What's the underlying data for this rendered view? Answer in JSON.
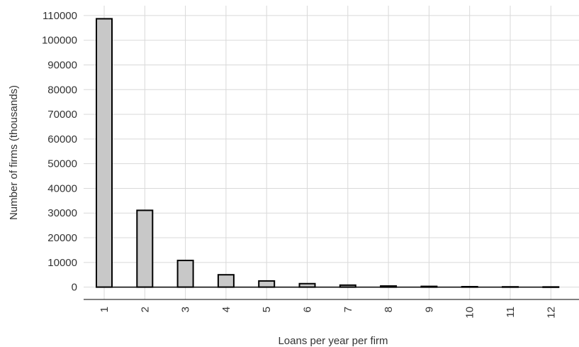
{
  "chart_data": {
    "type": "bar",
    "title": "",
    "xlabel": "Loans per year per firm",
    "ylabel": "Number of firms (thousands)",
    "categories": [
      "1",
      "2",
      "3",
      "4",
      "5",
      "6",
      "7",
      "8",
      "9",
      "10",
      "11",
      "12"
    ],
    "values": [
      108700,
      31100,
      10800,
      5000,
      2500,
      1400,
      800,
      450,
      300,
      180,
      120,
      80
    ],
    "ylim": [
      -5000,
      114000
    ],
    "yticks": [
      "0",
      "10000",
      "20000",
      "30000",
      "40000",
      "50000",
      "60000",
      "70000",
      "80000",
      "90000",
      "100000",
      "110000"
    ],
    "grid": true,
    "x_tick_rotation": "vertical",
    "colors": {
      "bar_fill": "#c8c8c8",
      "bar_stroke": "#000000",
      "grid": "#d9d9d9"
    }
  }
}
